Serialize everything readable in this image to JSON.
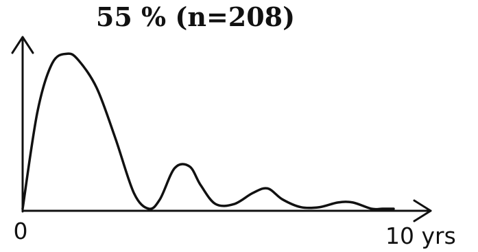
{
  "chart_data": {
    "type": "line",
    "title": "55 % (n=208)",
    "xlabel": "",
    "ylabel": "",
    "x_tick_labels": [
      "0",
      "10 yrs"
    ],
    "xlim": [
      0,
      10
    ],
    "ylim": [
      0,
      1
    ],
    "grid": false,
    "legend": "none",
    "series": [
      {
        "x": [
          0,
          0.4,
          0.8,
          1.2,
          1.5,
          2.0,
          2.5,
          3.0,
          3.4,
          3.7,
          4.1,
          4.5,
          4.8,
          5.2,
          5.7,
          6.2,
          6.6,
          7.0,
          7.5,
          8.0,
          8.5,
          8.9,
          9.4,
          9.7,
          10.0
        ],
        "y": [
          0,
          0.62,
          0.93,
          0.99,
          0.95,
          0.77,
          0.45,
          0.1,
          0.0,
          0.06,
          0.26,
          0.27,
          0.15,
          0.03,
          0.03,
          0.1,
          0.13,
          0.06,
          0.01,
          0.01,
          0.04,
          0.04,
          0.0,
          0.0,
          0.0
        ]
      }
    ],
    "colors": {
      "line": "#111111",
      "axis": "#111111",
      "text": "#111111"
    }
  }
}
